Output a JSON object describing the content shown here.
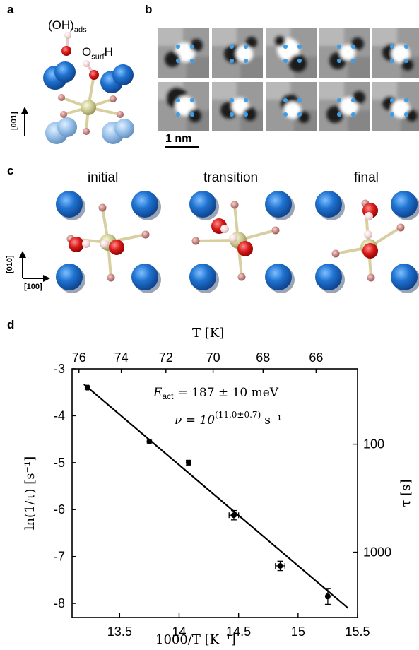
{
  "panels": {
    "a": {
      "label": "a",
      "oh_ads": {
        "main": "(OH)",
        "sub": "ads"
      },
      "osurf": {
        "main": "O",
        "sub": "surf",
        "tail": "H"
      },
      "axis": "[001]"
    },
    "b": {
      "label": "b",
      "scale_bar": "1 nm"
    },
    "c": {
      "label": "c",
      "states": [
        "initial",
        "transition",
        "final"
      ],
      "axis_v": "[010]",
      "axis_h": "[100]"
    },
    "d": {
      "label": "d"
    }
  },
  "colors": {
    "ti_blue": "#1f72d0",
    "ti_shadow": "#9aa4b5",
    "o_pink": "#c98784",
    "oxygen_red": "#d81a1a",
    "hydrogen": "#f3d6d6",
    "metal_khaki": "#c9c68d",
    "stm_dot": "#3f9ee8",
    "fit_line": "#000000"
  },
  "chart_data": {
    "type": "scatter",
    "title": "",
    "xlabel": "1000/T [K⁻¹]",
    "ylabel": "ln(1/τ) [s⁻¹]",
    "xlim": [
      13.1,
      15.5
    ],
    "ylim": [
      -8.3,
      -3
    ],
    "x_ticks": [
      "13.5",
      "14",
      "14.5",
      "15",
      "15.5"
    ],
    "y_ticks": [
      "-3",
      "-4",
      "-5",
      "-6",
      "-7",
      "-8"
    ],
    "top_axis": {
      "label": "T [K]",
      "ticks": [
        "76",
        "74",
        "72",
        "70",
        "68",
        "66"
      ]
    },
    "right_axis": {
      "label": "τ [s]",
      "ticks": [
        "100",
        "1000"
      ]
    },
    "series": [
      {
        "x": [
          13.23,
          13.75,
          14.08,
          14.46,
          14.85,
          15.25
        ],
        "y": [
          -3.4,
          -4.55,
          -5.0,
          -6.12,
          -7.2,
          -7.85
        ],
        "xerr": [
          0.01,
          0.01,
          0.01,
          0.04,
          0.04,
          0.01
        ],
        "yerr": [
          0.04,
          0.05,
          0.05,
          0.1,
          0.1,
          0.17
        ]
      }
    ],
    "fit_line": {
      "x": [
        13.2,
        15.42
      ],
      "y": [
        -3.33,
        -8.1
      ]
    },
    "annotations": {
      "e_act": {
        "lhs": "E",
        "sub": "act",
        "rhs": "= 187 ± 10 meV"
      },
      "nu": {
        "lhs": "ν = 10",
        "exp": "(11.0±0.7)",
        "unit": "s⁻¹"
      }
    }
  }
}
